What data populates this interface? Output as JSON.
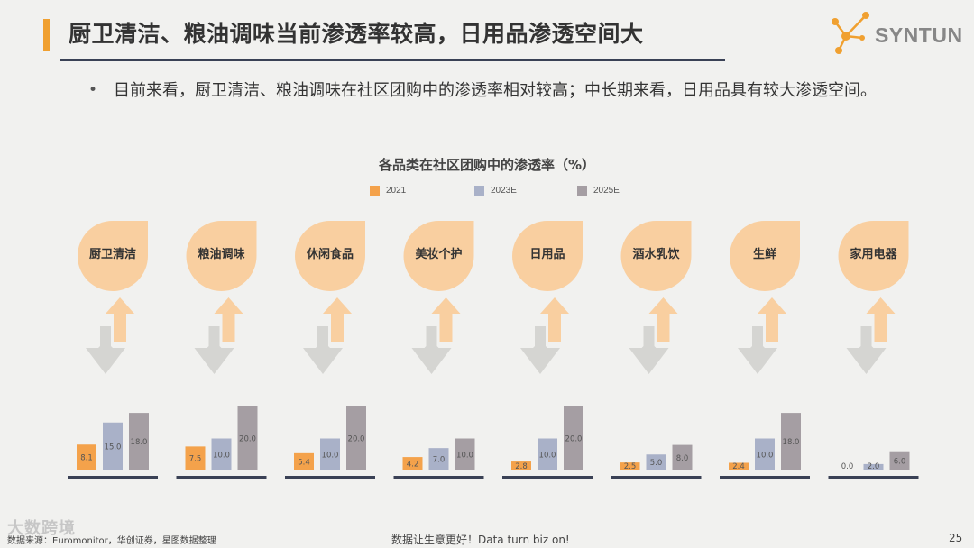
{
  "title": "厨卫清洁、粮油调味当前渗透率较高，日用品渗透空间大",
  "logo": {
    "text": "SYNTUN"
  },
  "bullet_text": "目前来看，厨卫清洁、粮油调味在社区团购中的渗透率相对较高；中长期来看，日用品具有较大渗透空间。",
  "colors": {
    "accent": "#f0a030",
    "bar_2021": "#f4a24b",
    "bar_2023E": "#a9b1c8",
    "bar_2025E": "#a59ea3",
    "bubble": "#f9cfa0",
    "up_arrow": "#f9cfa0",
    "down_arrow": "#d5d5d2",
    "baseline": "#3a4155"
  },
  "chart_data": {
    "type": "bar",
    "title": "各品类在社区团购中的渗透率（%）",
    "categories": [
      "厨卫清洁",
      "粮油调味",
      "休闲食品",
      "美妆个护",
      "日用品",
      "酒水乳饮",
      "生鲜",
      "家用电器"
    ],
    "series": [
      {
        "name": "2021",
        "values": [
          8.1,
          7.5,
          5.4,
          4.2,
          2.8,
          2.5,
          2.4,
          0.0
        ],
        "labels": [
          "8.1",
          "7.5",
          "5.4",
          "4.2",
          "2.8",
          "2.5",
          "2.4",
          "0.0"
        ]
      },
      {
        "name": "2023E",
        "values": [
          15.0,
          10.0,
          10.0,
          7.0,
          10.0,
          5.0,
          10.0,
          2.0
        ],
        "labels": [
          "15.0",
          "10.0",
          "10.0",
          "7.0",
          "10.0",
          "5.0",
          "10.0",
          "2.0"
        ]
      },
      {
        "name": "2025E",
        "values": [
          18.0,
          20.0,
          20.0,
          10.0,
          20.0,
          8.0,
          18.0,
          6.0
        ],
        "labels": [
          "18.0",
          "20.0",
          "20.0",
          "10.0",
          "20.0",
          "8.0",
          "18.0",
          "6.0"
        ]
      }
    ],
    "ylim": [
      0,
      20
    ],
    "legend_position": "top"
  },
  "footer": {
    "source": "数据来源：Euromonitor，华创证券，星图数据整理",
    "slogan": "数据让生意更好！Data turn biz on!",
    "page": "25"
  },
  "watermark": "大数跨境"
}
